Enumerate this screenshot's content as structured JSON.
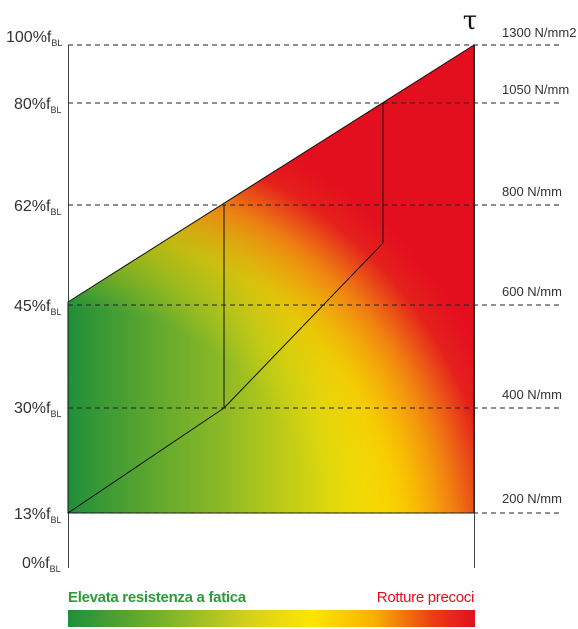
{
  "diagram": {
    "symbol": "τ",
    "y_levels": [
      {
        "pct": "100%",
        "unit": "1300 N/mm2"
      },
      {
        "pct": "80%",
        "unit": "1050 N/mm"
      },
      {
        "pct": "62%",
        "unit": "800 N/mm"
      },
      {
        "pct": "45%",
        "unit": "600 N/mm"
      },
      {
        "pct": "30%",
        "unit": "400 N/mm"
      },
      {
        "pct": "13%",
        "unit": "200 N/mm"
      },
      {
        "pct": "0%",
        "unit": ""
      }
    ],
    "f_symbol": "f",
    "f_subscript": "BL",
    "legend": {
      "left_label": "Elevata resistenza a fatica",
      "right_label": "Rotture precoci",
      "left_color": "#2e9a3c",
      "right_color": "#e30f1e"
    },
    "colors": {
      "green": "#1f8f3a",
      "yellow": "#ffe600",
      "red": "#e30f1e"
    }
  }
}
